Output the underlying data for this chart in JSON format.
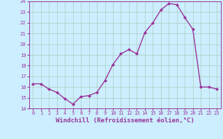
{
  "x": [
    0,
    1,
    2,
    3,
    4,
    5,
    6,
    7,
    8,
    9,
    10,
    11,
    12,
    13,
    14,
    15,
    16,
    17,
    18,
    19,
    20,
    21,
    22,
    23
  ],
  "y": [
    16.3,
    16.3,
    15.8,
    15.5,
    14.9,
    14.4,
    15.1,
    15.2,
    15.5,
    16.6,
    18.1,
    19.1,
    19.5,
    19.1,
    21.1,
    22.0,
    23.2,
    23.8,
    23.7,
    22.5,
    21.4,
    16.0,
    16.0,
    15.8
  ],
  "line_color": "#993399",
  "marker": "D",
  "marker_size": 2.0,
  "line_width": 1.0,
  "xlim": [
    -0.5,
    23.5
  ],
  "ylim": [
    14,
    24
  ],
  "yticks": [
    14,
    15,
    16,
    17,
    18,
    19,
    20,
    21,
    22,
    23,
    24
  ],
  "xticks": [
    0,
    1,
    2,
    3,
    4,
    5,
    6,
    7,
    8,
    9,
    10,
    11,
    12,
    13,
    14,
    15,
    16,
    17,
    18,
    19,
    20,
    21,
    22,
    23
  ],
  "xlabel": "Windchill (Refroidissement éolien,°C)",
  "background_color": "#cceeff",
  "grid_color": "#aaccbb",
  "tick_label_color": "#993399",
  "axis_label_color": "#993399",
  "tick_fontsize": 5.0,
  "xlabel_fontsize": 6.5
}
